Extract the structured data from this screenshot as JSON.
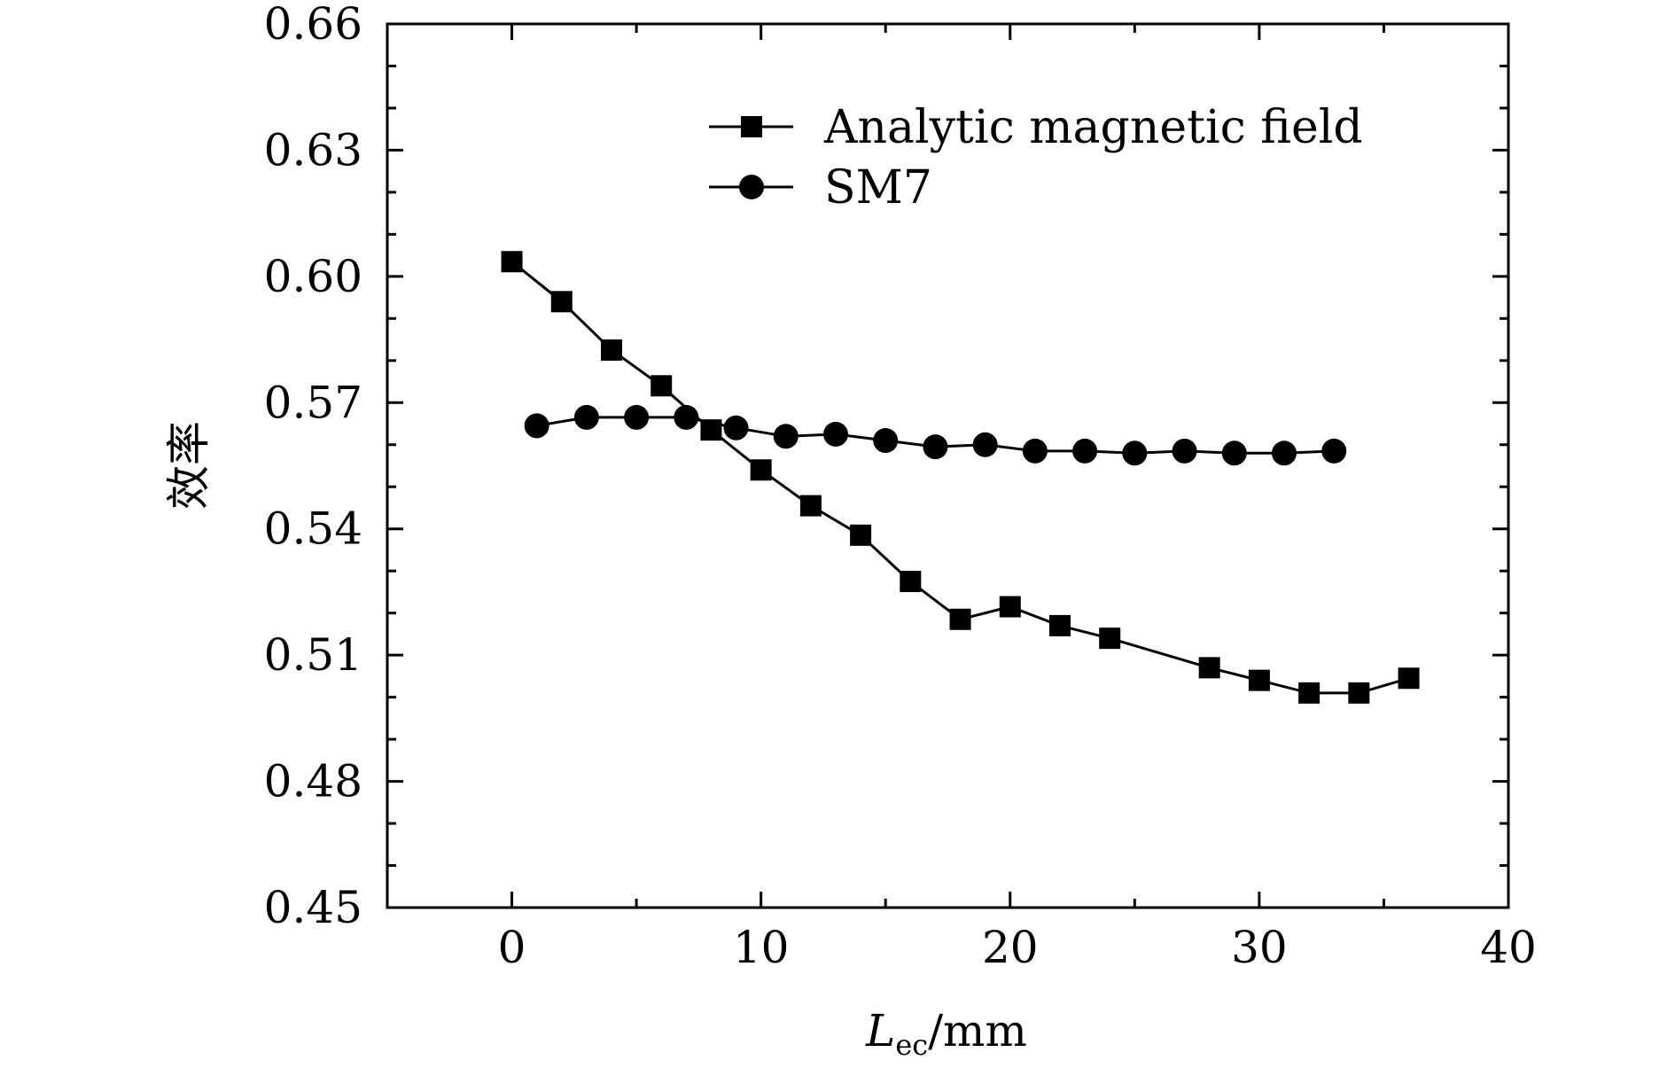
{
  "chart_data": {
    "type": "line",
    "title": "",
    "xlabel": {
      "main": "L",
      "sub": "ec",
      "unit": "/mm"
    },
    "ylabel": "效率",
    "xlim": [
      -5,
      40
    ],
    "ylim": [
      0.45,
      0.66
    ],
    "xticks": [
      "0",
      "10",
      "20",
      "30",
      "40"
    ],
    "yticks": [
      "0.45",
      "0.48",
      "0.51",
      "0.54",
      "0.57",
      "0.60",
      "0.63",
      "0.66"
    ],
    "grid": false,
    "legend_position": "top-right",
    "series": [
      {
        "name": "Analytic magnetic field",
        "marker": "square",
        "x": [
          0,
          2,
          4,
          6,
          8,
          10,
          12,
          14,
          16,
          18,
          20,
          22,
          24,
          28,
          30,
          32,
          34,
          36
        ],
        "y": [
          0.6035,
          0.594,
          0.5825,
          0.574,
          0.5635,
          0.554,
          0.5455,
          0.5385,
          0.5275,
          0.5185,
          0.5215,
          0.517,
          0.514,
          0.507,
          0.504,
          0.501,
          0.501,
          0.5045
        ]
      },
      {
        "name": "SM7",
        "marker": "circle",
        "x": [
          1,
          3,
          5,
          7,
          9,
          11,
          13,
          15,
          17,
          19,
          21,
          23,
          25,
          27,
          29,
          31,
          33
        ],
        "y": [
          0.5645,
          0.5665,
          0.5665,
          0.5665,
          0.564,
          0.562,
          0.5625,
          0.561,
          0.5595,
          0.56,
          0.5585,
          0.5585,
          0.558,
          0.5585,
          0.558,
          0.558,
          0.5585
        ]
      }
    ]
  }
}
